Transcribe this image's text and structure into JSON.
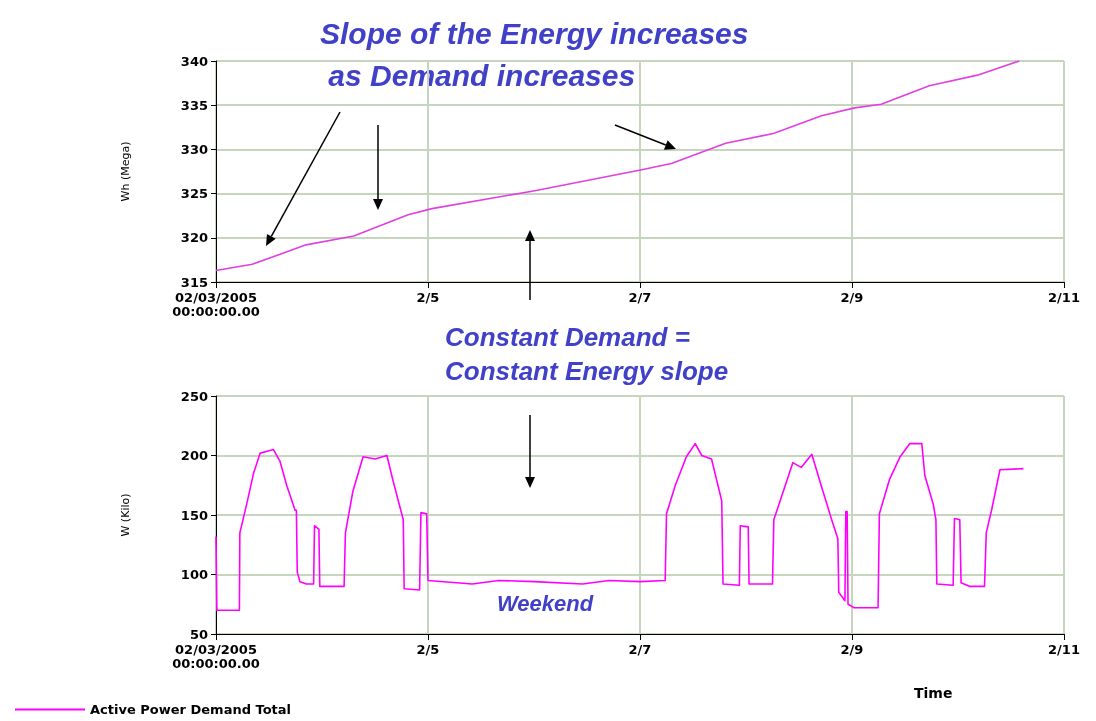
{
  "chart_data": [
    {
      "type": "line",
      "ylabel": "Wh (Mega)",
      "annotations": [
        "Slope of the Energy increases\n as Demand increases"
      ],
      "series": [
        {
          "color": "#e040e0",
          "x": [
            "2005-02-03T00:00",
            "2005-02-03T08:12",
            "2005-02-03T20:24",
            "2005-02-04T07:12",
            "2005-02-04T19:30",
            "2005-02-05T00:54",
            "2005-02-05T23:54",
            "2005-02-07T00:24",
            "2005-02-07T07:06",
            "2005-02-07T19:24",
            "2005-02-08T06:12",
            "2005-02-08T17:06",
            "2005-02-09T00:36",
            "2005-02-09T06:36",
            "2005-02-09T17:30",
            "2005-02-10T04:24",
            "2005-02-10T13:54"
          ],
          "values": [
            316.3,
            317.0,
            319.2,
            320.2,
            322.6,
            323.3,
            325.3,
            327.7,
            328.4,
            330.7,
            331.8,
            333.8,
            334.7,
            335.1,
            337.2,
            338.4,
            340.0
          ]
        }
      ],
      "xlim": [
        "2005-02-03",
        "2005-02-11"
      ],
      "xticks": [
        {
          "value": "2005-02-03",
          "label": "02/03/2005\n00:00:00.00"
        },
        {
          "value": "2005-02-05",
          "label": "2/5"
        },
        {
          "value": "2005-02-07",
          "label": "2/7"
        },
        {
          "value": "2005-02-09",
          "label": "2/9"
        },
        {
          "value": "2005-02-11",
          "label": "2/11"
        }
      ],
      "ylim": [
        315,
        340
      ],
      "yticks": [
        315,
        320,
        325,
        330,
        335,
        340
      ],
      "grid": true,
      "legend": false
    },
    {
      "type": "line",
      "ylabel": "W (Kilo)",
      "xlabel": "Time",
      "annotations": [
        "Constant Demand =\nConstant Energy slope",
        "Weekend"
      ],
      "series": [
        {
          "name": "Active Power Demand Total",
          "color": "#ff00ff",
          "x": [
            "2005-02-03T00:00",
            "2005-02-03T00:12",
            "2005-02-03T05:18",
            "2005-02-03T05:24",
            "2005-02-03T07:00",
            "2005-02-03T08:30",
            "2005-02-03T10:00",
            "2005-02-03T12:00",
            "2005-02-03T13:00",
            "2005-02-03T14:30",
            "2005-02-03T16:00",
            "2005-02-03T17:54",
            "2005-02-03T18:12",
            "2005-02-03T18:24",
            "2005-02-03T19:00",
            "2005-02-03T20:30",
            "2005-02-03T22:06",
            "2005-02-03T22:18",
            "2005-02-03T23:18",
            "2005-02-03T23:30",
            "2005-02-04T05:00",
            "2005-02-04T05:18",
            "2005-02-04T07:00",
            "2005-02-04T09:18",
            "2005-02-04T12:00",
            "2005-02-04T14:42",
            "2005-02-04T16:00",
            "2005-02-04T18:24",
            "2005-02-04T18:36",
            "2005-02-04T22:06",
            "2005-02-04T22:24",
            "2005-02-04T23:42",
            "2005-02-05T00:00",
            "2005-02-05T10:00",
            "2005-02-05T16:00",
            "2005-02-06T00:00",
            "2005-02-06T11:00",
            "2005-02-06T17:00",
            "2005-02-07T00:00",
            "2005-02-07T05:42",
            "2005-02-07T06:00",
            "2005-02-07T08:00",
            "2005-02-07T10:30",
            "2005-02-07T12:30",
            "2005-02-07T14:00",
            "2005-02-07T16:12",
            "2005-02-07T18:30",
            "2005-02-07T18:48",
            "2005-02-07T22:30",
            "2005-02-07T22:42",
            "2005-02-08T00:30",
            "2005-02-08T00:42",
            "2005-02-08T06:00",
            "2005-02-08T06:18",
            "2005-02-08T10:36",
            "2005-02-08T12:30",
            "2005-02-08T14:54",
            "2005-02-08T17:00",
            "2005-02-08T19:24",
            "2005-02-08T20:48",
            "2005-02-08T21:00",
            "2005-02-08T22:24",
            "2005-02-08T22:36",
            "2005-02-08T22:54",
            "2005-02-08T23:06",
            "2005-02-09T00:30",
            "2005-02-09T05:54",
            "2005-02-09T06:12",
            "2005-02-09T08:30",
            "2005-02-09T10:54",
            "2005-02-09T13:06",
            "2005-02-09T15:48",
            "2005-02-09T16:30",
            "2005-02-09T18:24",
            "2005-02-09T19:00",
            "2005-02-09T19:12",
            "2005-02-09T22:54",
            "2005-02-09T23:12",
            "2005-02-10T00:24",
            "2005-02-10T00:42",
            "2005-02-10T02:42",
            "2005-02-10T06:00",
            "2005-02-10T06:24",
            "2005-02-10T07:36",
            "2005-02-10T09:30",
            "2005-02-10T14:48"
          ],
          "values": [
            132,
            70,
            70,
            135,
            160,
            185,
            202,
            204,
            205,
            195,
            175,
            154,
            154,
            102,
            94,
            92,
            92,
            141,
            138,
            90,
            90,
            135,
            170,
            199,
            197,
            200,
            180,
            146,
            88,
            87,
            152,
            151,
            95,
            92,
            95,
            94,
            92,
            95,
            94,
            95,
            151,
            175,
            199,
            210,
            200,
            197,
            162,
            92,
            91,
            141,
            140,
            92,
            92,
            146,
            194,
            190,
            201,
            175,
            146,
            130,
            85,
            78,
            153,
            153,
            75,
            72,
            72,
            151,
            180,
            199,
            210,
            210,
            183,
            159,
            146,
            92,
            91,
            147,
            146,
            93,
            90,
            90,
            135,
            154,
            188,
            189
          ]
        }
      ],
      "xlim": [
        "2005-02-03",
        "2005-02-11"
      ],
      "xticks": [
        {
          "value": "2005-02-03",
          "label": "02/03/2005\n00:00:00.00"
        },
        {
          "value": "2005-02-05",
          "label": "2/5"
        },
        {
          "value": "2005-02-07",
          "label": "2/7"
        },
        {
          "value": "2005-02-09",
          "label": "2/9"
        },
        {
          "value": "2005-02-11",
          "label": "2/11"
        }
      ],
      "ylim": [
        50,
        250
      ],
      "yticks": [
        50,
        100,
        150,
        200,
        250
      ],
      "grid": true,
      "legend": "bottom left"
    }
  ]
}
